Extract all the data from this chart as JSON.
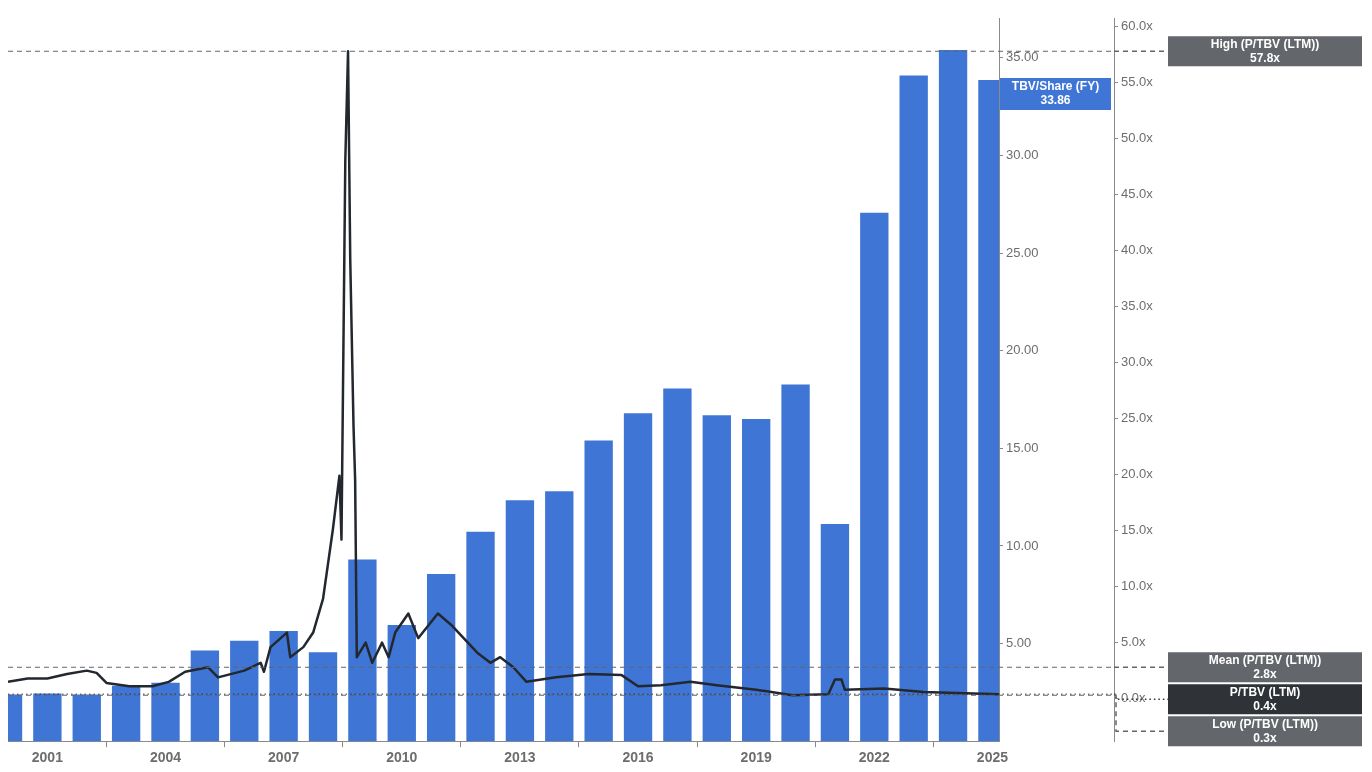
{
  "chart_data": {
    "type": "bar",
    "grid": false,
    "legend": false,
    "xlim": [
      "2000-01",
      "2025-03"
    ],
    "xticks": [
      "2001",
      "2004",
      "2007",
      "2010",
      "2013",
      "2016",
      "2019",
      "2022",
      "2025"
    ],
    "ylim": [
      0,
      37
    ],
    "yticks": [
      {
        "value": 5,
        "label": "5.00"
      },
      {
        "value": 10,
        "label": "10.00"
      },
      {
        "value": 15,
        "label": "15.00"
      },
      {
        "value": 20,
        "label": "20.00"
      },
      {
        "value": 25,
        "label": "25.00"
      },
      {
        "value": 30,
        "label": "30.00"
      },
      {
        "value": 35,
        "label": "35.00"
      }
    ],
    "y2lim": [
      -3.8,
      60.7
    ],
    "y2ticks": [
      {
        "value": 0,
        "label": "0.0x"
      },
      {
        "value": 5,
        "label": "5.0x"
      },
      {
        "value": 10,
        "label": "10.0x"
      },
      {
        "value": 15,
        "label": "15.0x"
      },
      {
        "value": 20,
        "label": "20.0x"
      },
      {
        "value": 25,
        "label": "25.0x"
      },
      {
        "value": 30,
        "label": "30.0x"
      },
      {
        "value": 35,
        "label": "35.0x"
      },
      {
        "value": 40,
        "label": "40.0x"
      },
      {
        "value": 45,
        "label": "45.0x"
      },
      {
        "value": 50,
        "label": "50.0x"
      },
      {
        "value": 55,
        "label": "55.0x"
      },
      {
        "value": 60,
        "label": "60.0x"
      }
    ],
    "series": [
      {
        "color": "#3f76d6",
        "x": [
          "2000",
          "2001",
          "2002",
          "2003",
          "2004",
          "2005",
          "2006",
          "2007",
          "2008",
          "2009",
          "2010",
          "2011",
          "2012",
          "2013",
          "2014",
          "2015",
          "2016",
          "2017",
          "2018",
          "2019",
          "2020",
          "2021",
          "2022",
          "2023",
          "2024",
          "2025"
        ],
        "values": [
          2.39,
          2.44,
          2.39,
          2.84,
          3.0,
          4.65,
          5.15,
          5.65,
          4.55,
          9.3,
          5.95,
          8.57,
          10.73,
          12.34,
          12.8,
          15.4,
          16.8,
          18.07,
          16.7,
          16.5,
          18.27,
          11.13,
          27.06,
          34.1,
          35.4,
          33.86
        ]
      },
      {
        "type": "line",
        "axis": "y2",
        "color": "#23272e",
        "x": [
          "2000-01",
          "2000-07",
          "2001-01",
          "2001-07",
          "2002-01",
          "2002-04",
          "2002-07",
          "2003-02",
          "2003-09",
          "2004-02",
          "2004-07",
          "2005-02",
          "2005-05",
          "2006-01",
          "2006-06",
          "2006-07",
          "2006-09",
          "2007-02",
          "2007-03",
          "2007-07",
          "2007-10",
          "2008-01",
          "2008-04",
          "2008-06-01",
          "2008-06-20",
          "2008-07-25",
          "2008-08-20",
          "2008-09-10",
          "2008-10-10",
          "2008-10-25",
          "2008-11-10",
          "2009-02",
          "2009-04",
          "2009-07",
          "2009-09",
          "2009-11",
          "2010-03",
          "2010-06",
          "2010-12",
          "2011-04",
          "2011-12",
          "2012-04",
          "2012-07",
          "2012-11",
          "2013-03",
          "2013-12",
          "2014-10",
          "2015-08",
          "2016-01",
          "2016-08",
          "2017-05",
          "2018-01",
          "2019-01",
          "2019-12",
          "2020-11",
          "2021-01",
          "2021-03",
          "2021-04",
          "2022-04",
          "2023-04",
          "2025-03"
        ],
        "values": [
          1.5,
          1.8,
          1.8,
          2.2,
          2.5,
          2.3,
          1.4,
          1.1,
          1.1,
          1.5,
          2.4,
          2.8,
          1.9,
          2.5,
          3.2,
          2.4,
          4.6,
          5.9,
          3.7,
          4.6,
          5.9,
          8.9,
          15.1,
          19.9,
          14.2,
          48,
          57.8,
          39.2,
          24.3,
          19.5,
          3.7,
          5.0,
          3.2,
          5.0,
          3.7,
          5.9,
          7.6,
          5.4,
          7.6,
          6.6,
          4.1,
          3.2,
          3.7,
          2.8,
          1.5,
          1.9,
          2.2,
          2.1,
          1.1,
          1.2,
          1.5,
          1.2,
          0.8,
          0.3,
          0.4,
          1.7,
          1.7,
          0.8,
          0.9,
          0.6,
          0.4
        ]
      }
    ],
    "ref_lines": [
      {
        "axis": "y2",
        "value": 57.8,
        "color": "#63666a",
        "line_style": "dashed"
      },
      {
        "axis": "y2",
        "value": 2.8,
        "color": "#63666a",
        "line_style": "dashed"
      },
      {
        "axis": "y2",
        "value": 0.4,
        "color": "#2f3237",
        "line_style": "dotted"
      },
      {
        "axis": "y2",
        "value": 0.3,
        "color": "#63666a",
        "line_style": "dashed"
      }
    ],
    "annotations": [
      {
        "text": "TBV/Share (FY)\n33.86",
        "x": "2025",
        "y": 33.86
      },
      "High (P/TBV (LTM))\n57.8x",
      "Mean (P/TBV (LTM))\n2.8x",
      "P/TBV (LTM)\n0.4x",
      "Low (P/TBV (LTM))\n0.3x"
    ]
  }
}
